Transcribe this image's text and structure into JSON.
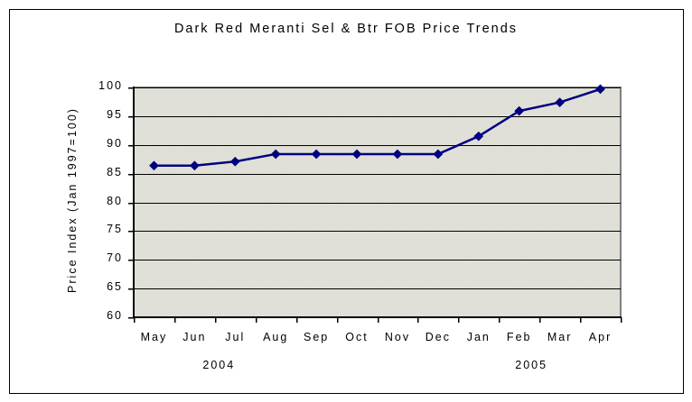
{
  "chart_data": {
    "type": "line",
    "title": "Dark Red Meranti Sel & Btr FOB Price Trends",
    "ylabel": "Price Index (Jan 1997=100)",
    "xlabel": "",
    "categories": [
      "May",
      "Jun",
      "Jul",
      "Aug",
      "Sep",
      "Oct",
      "Nov",
      "Dec",
      "Jan",
      "Feb",
      "Mar",
      "Apr"
    ],
    "values": [
      86.4,
      86.4,
      87.1,
      88.4,
      88.4,
      88.4,
      88.4,
      88.4,
      91.5,
      95.9,
      97.4,
      99.7
    ],
    "year_labels": [
      {
        "text": "2004",
        "position_index": 1.6
      },
      {
        "text": "2005",
        "position_index": 9.3
      }
    ],
    "ylim": [
      60,
      100
    ],
    "ytick_step": 5,
    "yticks": [
      60,
      65,
      70,
      75,
      80,
      85,
      90,
      95,
      100
    ],
    "grid": true,
    "legend": "none",
    "marker": "diamond",
    "colors": {
      "line": "#000080",
      "marker": "#000080",
      "gridline": "#000000",
      "axis": "#000000",
      "plot_border": "#808080",
      "plot_bg_light": "#E9E9E1",
      "plot_bg_dark": "#D6D6CE",
      "figure_bg": "#FFFFFF",
      "text": "#000000"
    }
  }
}
